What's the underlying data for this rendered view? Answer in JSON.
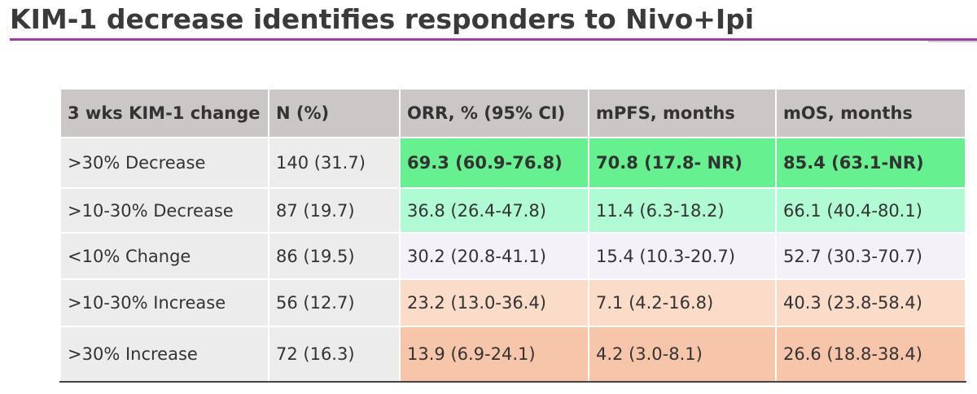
{
  "header": {
    "title": "KIM-1 decrease identifies responders to Nivo+Ipi"
  },
  "table": {
    "columns": [
      "3 wks KIM-1 change",
      "N (%)",
      "ORR, % (95% CI)",
      "mPFS, months",
      "mOS, months"
    ],
    "rows": [
      [
        ">30% Decrease",
        "140 (31.7)",
        "69.3 (60.9-76.8)",
        "70.8 (17.8- NR)",
        "85.4 (63.1-NR)"
      ],
      [
        ">10-30% Decrease",
        "87 (19.7)",
        "36.8 (26.4-47.8)",
        "11.4 (6.3-18.2)",
        "66.1 (40.4-80.1)"
      ],
      [
        "<10% Change",
        "86 (19.5)",
        "30.2 (20.8-41.1)",
        "15.4 (10.3-20.7)",
        "52.7 (30.3-70.7)"
      ],
      [
        ">10-30% Increase",
        "56 (12.7)",
        "23.2 (13.0-36.4)",
        "7.1 (4.2-16.8)",
        "40.3 (23.8-58.4)"
      ],
      [
        ">30% Increase",
        "72 (16.3)",
        "13.9 (6.9-24.1)",
        "4.2 (3.0-8.1)",
        "26.6 (18.8-38.4)"
      ]
    ]
  }
}
